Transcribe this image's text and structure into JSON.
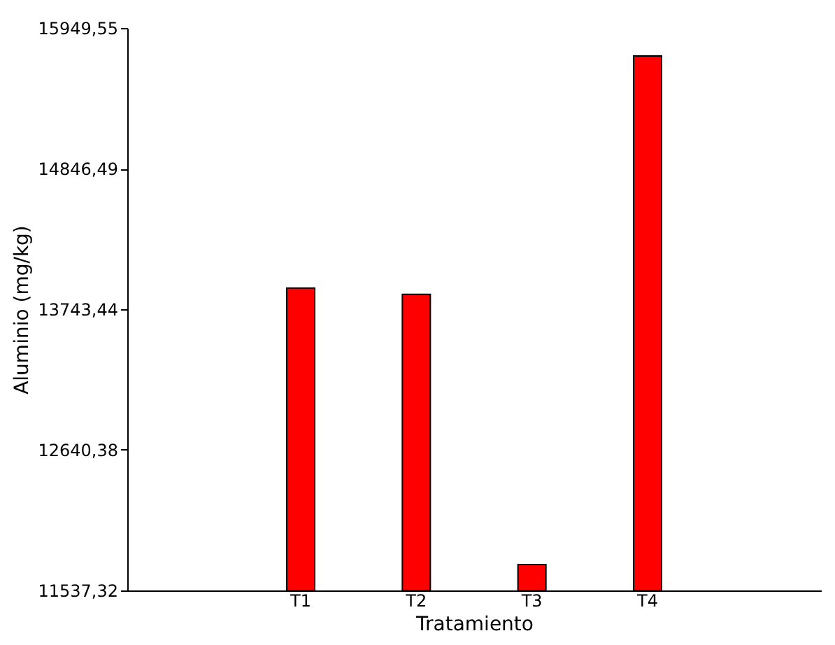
{
  "chart_data": {
    "type": "bar",
    "xlabel": "Tratamiento",
    "ylabel": "Aluminio (mg/kg)",
    "categories": [
      "T1",
      "T2",
      "T3",
      "T4"
    ],
    "values": [
      13910,
      13860,
      11740,
      15730
    ],
    "color": "#ff0000",
    "ylim": [
      11537.32,
      15949.55
    ],
    "yticks": [
      {
        "value": 11537.32,
        "label": "11537,32"
      },
      {
        "value": 12640.38,
        "label": "12640,38"
      },
      {
        "value": 13743.44,
        "label": "13743,44"
      },
      {
        "value": 14846.49,
        "label": "14846,49"
      },
      {
        "value": 15949.55,
        "label": "15949,55"
      }
    ],
    "grid": false
  }
}
